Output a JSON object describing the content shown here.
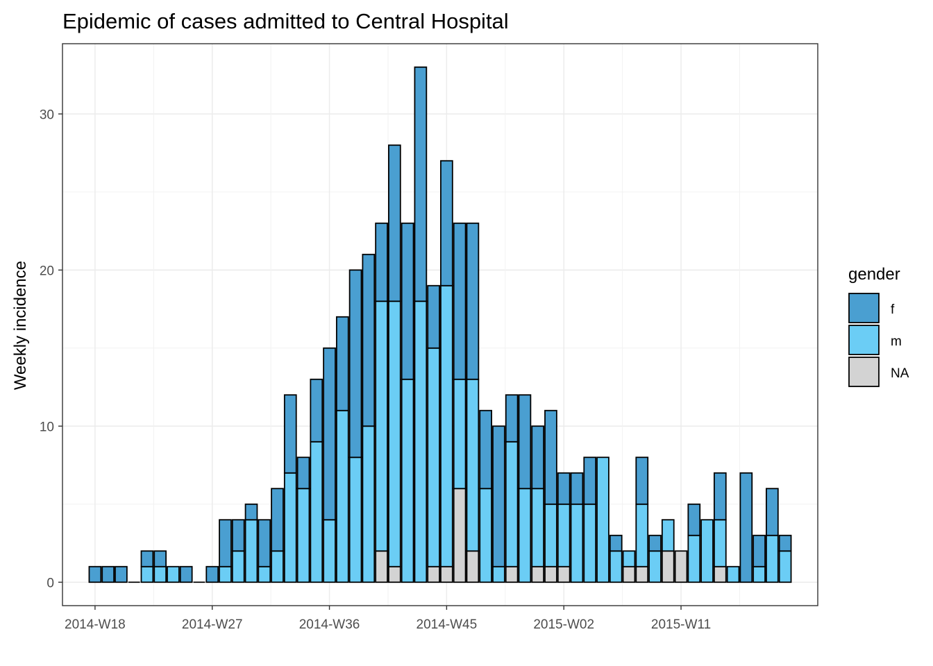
{
  "chart_data": {
    "type": "bar",
    "stacked": true,
    "title": "Epidemic of cases admitted to Central Hospital",
    "xlabel": "",
    "ylabel": "Weekly incidence",
    "ylim": [
      -1.5,
      34.5
    ],
    "yticks": [
      0,
      10,
      20,
      30
    ],
    "x_week_range": [
      "2014-W18",
      "2015-W24"
    ],
    "xticks": [
      "2014-W18",
      "2014-W27",
      "2014-W36",
      "2014-W45",
      "2015-W02",
      "2015-W11"
    ],
    "xtick_weeks": [
      0,
      9,
      18,
      27,
      36,
      45
    ],
    "grid": true,
    "legend": {
      "title": "gender",
      "position": "right"
    },
    "series": [
      {
        "name": "NA",
        "color": "#d3d3d3",
        "values": [
          0,
          0,
          0,
          0,
          0,
          0,
          0,
          0,
          0,
          0,
          0,
          0,
          0,
          0,
          0,
          0,
          0,
          0,
          0,
          0,
          0,
          0,
          2,
          1,
          0,
          0,
          1,
          1,
          6,
          2,
          0,
          0,
          1,
          0,
          1,
          1,
          1,
          0,
          0,
          0,
          0,
          1,
          1,
          0,
          2,
          2,
          0,
          0,
          1,
          0,
          0,
          0,
          0,
          0
        ]
      },
      {
        "name": "m",
        "color": "#6bcdf5",
        "values": [
          0,
          0,
          0,
          0,
          1,
          1,
          1,
          0,
          0,
          0,
          1,
          2,
          4,
          1,
          2,
          7,
          6,
          9,
          4,
          11,
          8,
          10,
          16,
          17,
          13,
          18,
          14,
          18,
          7,
          11,
          6,
          1,
          8,
          6,
          5,
          4,
          4,
          5,
          5,
          8,
          2,
          1,
          4,
          2,
          2,
          0,
          3,
          4,
          3,
          1,
          0,
          1,
          3,
          2
        ]
      },
      {
        "name": "f",
        "color": "#4a9fd1",
        "values": [
          1,
          1,
          1,
          0,
          1,
          1,
          0,
          1,
          0,
          1,
          3,
          2,
          1,
          3,
          4,
          5,
          2,
          4,
          11,
          6,
          12,
          11,
          5,
          10,
          10,
          15,
          4,
          8,
          10,
          10,
          5,
          9,
          3,
          6,
          4,
          6,
          2,
          2,
          3,
          0,
          1,
          0,
          3,
          1,
          0,
          0,
          2,
          0,
          3,
          0,
          7,
          2,
          3,
          1
        ]
      }
    ]
  }
}
